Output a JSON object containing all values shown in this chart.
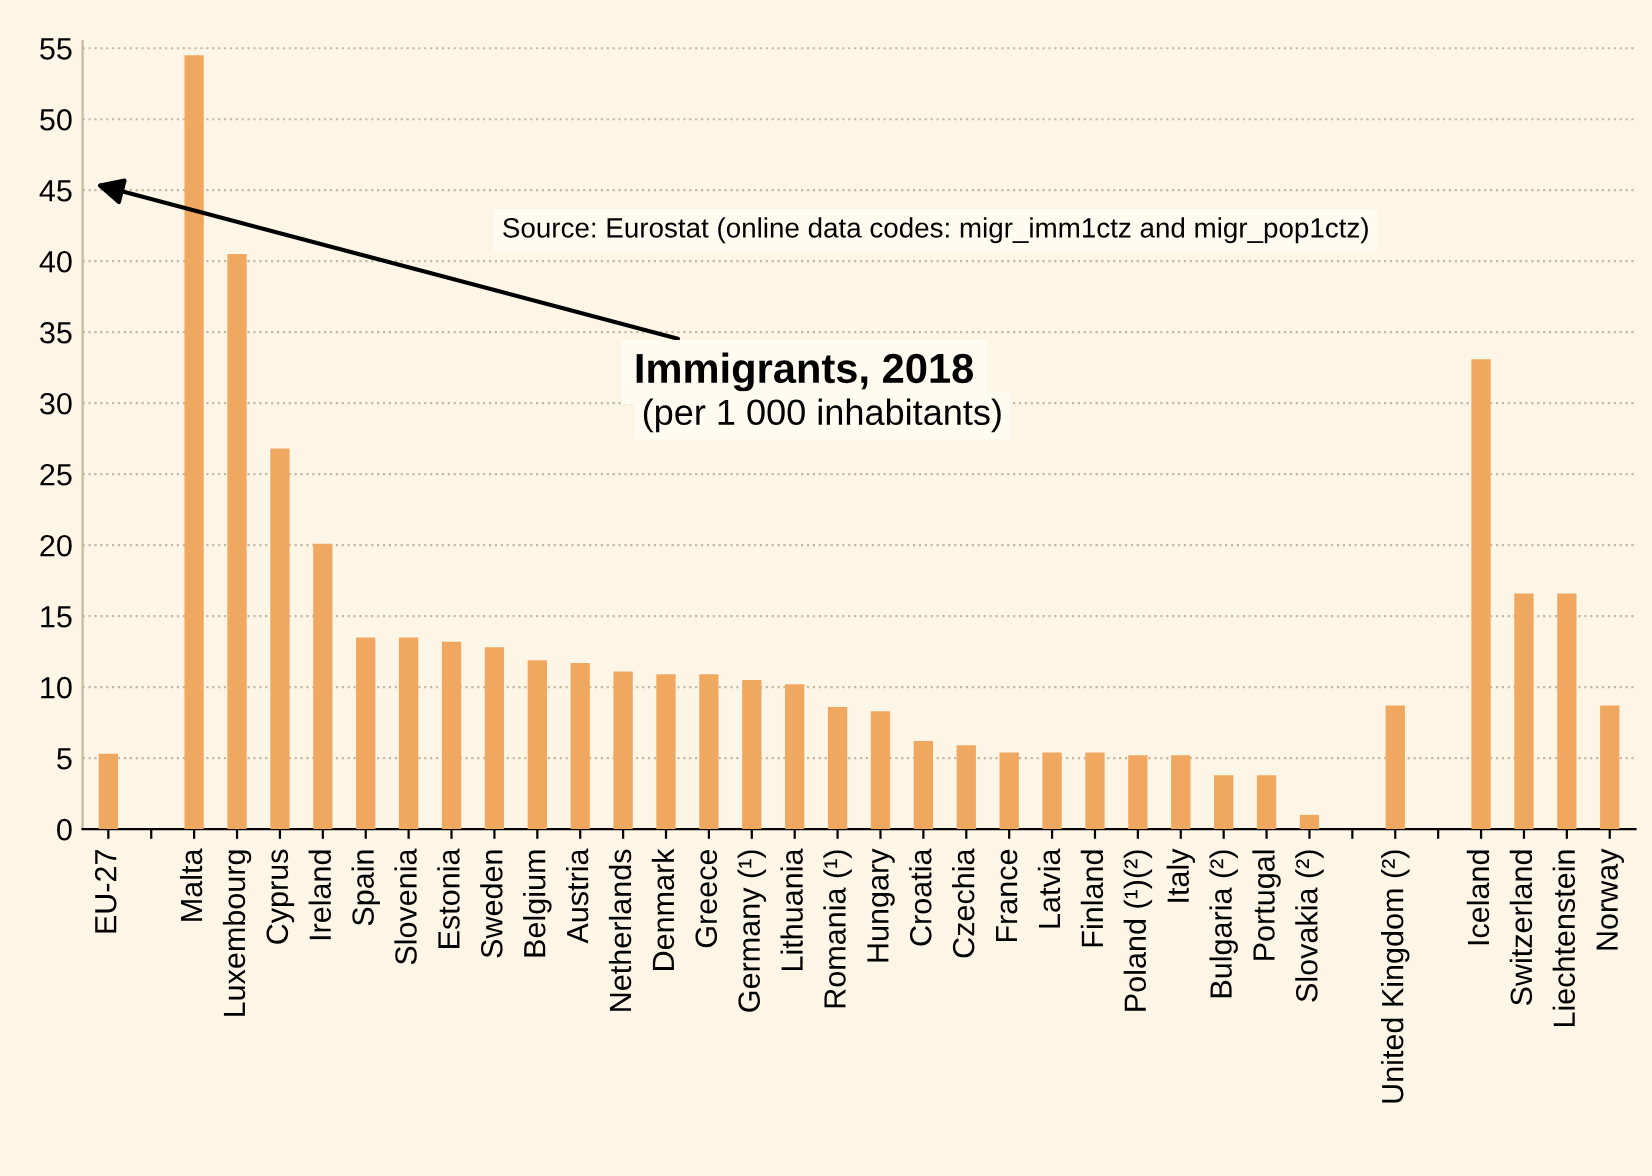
{
  "chart_data": {
    "type": "bar",
    "title": "Immigrants, 2018",
    "subtitle": "(per 1 000 inhabitants)",
    "annotations": [
      "Source: Eurostat (online data codes: migr_imm1ctz and migr_pop1ctz)"
    ],
    "categories": [
      "EU-27",
      null,
      "Malta",
      "Luxembourg",
      "Cyprus",
      "Ireland",
      "Spain",
      "Slovenia",
      "Estonia",
      "Sweden",
      "Belgium",
      "Austria",
      "Netherlands",
      "Denmark",
      "Greece",
      "Germany (¹)",
      "Lithuania",
      "Romania (¹)",
      "Hungary",
      "Croatia",
      "Czechia",
      "France",
      "Latvia",
      "Finland",
      "Poland (¹)(²)",
      "Italy",
      "Bulgaria (²)",
      "Portugal",
      "Slovakia (²)",
      null,
      "United Kingdom (²)",
      null,
      "Iceland",
      "Switzerland",
      "Liechtenstein",
      "Norway"
    ],
    "values": [
      5.3,
      null,
      54.5,
      40.5,
      26.8,
      20.1,
      13.5,
      13.5,
      13.2,
      12.8,
      11.9,
      11.7,
      11.1,
      10.9,
      10.9,
      10.5,
      10.2,
      8.6,
      8.3,
      6.2,
      5.9,
      5.4,
      5.4,
      5.4,
      5.2,
      5.2,
      3.8,
      3.8,
      1.0,
      null,
      8.7,
      null,
      33.1,
      16.6,
      16.6,
      8.7
    ],
    "color": "#f0a860",
    "ylim": [
      0,
      55.5
    ],
    "yticks": [
      0,
      5,
      10,
      15,
      20,
      25,
      30,
      35,
      40,
      45,
      50,
      55
    ],
    "grid": "y"
  }
}
